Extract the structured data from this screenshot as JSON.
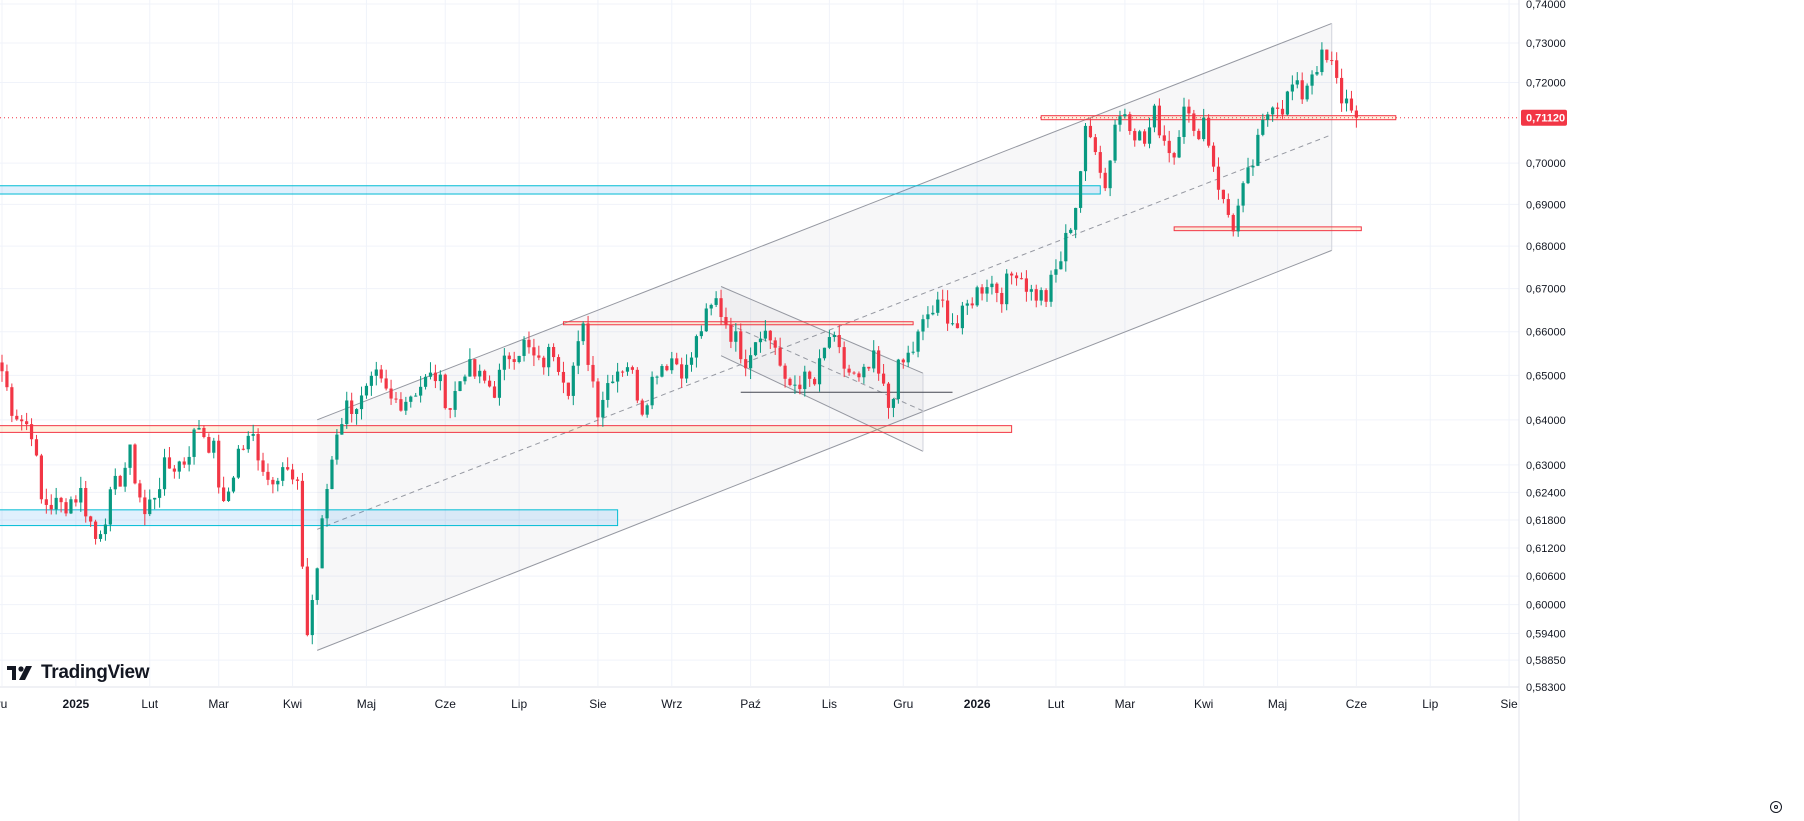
{
  "brand": {
    "name": "TradingView",
    "logo_icon": "tradingview-logo-icon"
  },
  "price_badge": {
    "value": "0,71120",
    "color": "#f23645",
    "price": 0.7112
  },
  "colors": {
    "up": "#089981",
    "down": "#f23645",
    "grid": "#f0f3fa",
    "channel": "#9598a1",
    "demand_zone": "#00bcd4",
    "supply_zone": "#f23645"
  },
  "settings_icon": "gear-icon",
  "chart_data": {
    "type": "candlestick",
    "title": "",
    "xlabel": "",
    "ylabel": "",
    "y_scale": "log",
    "ylim": [
      0.583,
      0.74
    ],
    "grid": true,
    "y_ticks": [
      {
        "value": 0.74,
        "label": "0,74000"
      },
      {
        "value": 0.73,
        "label": "0,73000"
      },
      {
        "value": 0.72,
        "label": "0,72000"
      },
      {
        "value": 0.7,
        "label": "0,70000"
      },
      {
        "value": 0.69,
        "label": "0,69000"
      },
      {
        "value": 0.68,
        "label": "0,68000"
      },
      {
        "value": 0.67,
        "label": "0,67000"
      },
      {
        "value": 0.66,
        "label": "0,66000"
      },
      {
        "value": 0.65,
        "label": "0,65000"
      },
      {
        "value": 0.64,
        "label": "0,64000"
      },
      {
        "value": 0.63,
        "label": "0,63000"
      },
      {
        "value": 0.624,
        "label": "0,62400"
      },
      {
        "value": 0.618,
        "label": "0,61800"
      },
      {
        "value": 0.612,
        "label": "0,61200"
      },
      {
        "value": 0.606,
        "label": "0,60600"
      },
      {
        "value": 0.6,
        "label": "0,60000"
      },
      {
        "value": 0.594,
        "label": "0,59400"
      },
      {
        "value": 0.5885,
        "label": "0,58850"
      },
      {
        "value": 0.583,
        "label": "0,58300"
      }
    ],
    "x_ticks": [
      {
        "label": "ru",
        "bar": 0,
        "year": false
      },
      {
        "label": "2025",
        "bar": 15,
        "year": true
      },
      {
        "label": "Lut",
        "bar": 30,
        "year": false
      },
      {
        "label": "Mar",
        "bar": 44,
        "year": false
      },
      {
        "label": "Kwi",
        "bar": 59,
        "year": false
      },
      {
        "label": "Maj",
        "bar": 74,
        "year": false
      },
      {
        "label": "Cze",
        "bar": 90,
        "year": false
      },
      {
        "label": "Lip",
        "bar": 105,
        "year": false
      },
      {
        "label": "Sie",
        "bar": 121,
        "year": false
      },
      {
        "label": "Wrz",
        "bar": 136,
        "year": false
      },
      {
        "label": "Paź",
        "bar": 152,
        "year": false
      },
      {
        "label": "Lis",
        "bar": 168,
        "year": false
      },
      {
        "label": "Gru",
        "bar": 183,
        "year": false
      },
      {
        "label": "2026",
        "bar": 198,
        "year": true
      },
      {
        "label": "Lut",
        "bar": 214,
        "year": false
      },
      {
        "label": "Mar",
        "bar": 228,
        "year": false
      },
      {
        "label": "Kwi",
        "bar": 244,
        "year": false
      },
      {
        "label": "Maj",
        "bar": 259,
        "year": false
      },
      {
        "label": "Cze",
        "bar": 275,
        "year": false
      },
      {
        "label": "Lip",
        "bar": 290,
        "year": false
      },
      {
        "label": "Sie",
        "bar": 306,
        "year": false
      }
    ],
    "anchors": [
      {
        "bar": 0,
        "close": 0.651
      },
      {
        "bar": 2,
        "close": 0.643
      },
      {
        "bar": 4,
        "close": 0.64
      },
      {
        "bar": 6,
        "close": 0.638
      },
      {
        "bar": 8,
        "close": 0.622
      },
      {
        "bar": 12,
        "close": 0.621
      },
      {
        "bar": 16,
        "close": 0.624
      },
      {
        "bar": 19,
        "close": 0.614
      },
      {
        "bar": 23,
        "close": 0.625
      },
      {
        "bar": 26,
        "close": 0.632
      },
      {
        "bar": 29,
        "close": 0.619
      },
      {
        "bar": 33,
        "close": 0.629
      },
      {
        "bar": 37,
        "close": 0.631
      },
      {
        "bar": 40,
        "close": 0.639
      },
      {
        "bar": 43,
        "close": 0.633
      },
      {
        "bar": 45,
        "close": 0.62
      },
      {
        "bar": 48,
        "close": 0.633
      },
      {
        "bar": 51,
        "close": 0.636
      },
      {
        "bar": 54,
        "close": 0.627
      },
      {
        "bar": 57,
        "close": 0.63
      },
      {
        "bar": 60,
        "close": 0.624
      },
      {
        "bar": 62,
        "close": 0.594
      },
      {
        "bar": 64,
        "close": 0.608
      },
      {
        "bar": 66,
        "close": 0.625
      },
      {
        "bar": 68,
        "close": 0.638
      },
      {
        "bar": 70,
        "close": 0.643
      },
      {
        "bar": 73,
        "close": 0.644
      },
      {
        "bar": 76,
        "close": 0.649
      },
      {
        "bar": 79,
        "close": 0.644
      },
      {
        "bar": 82,
        "close": 0.645
      },
      {
        "bar": 85,
        "close": 0.648
      },
      {
        "bar": 88,
        "close": 0.65
      },
      {
        "bar": 91,
        "close": 0.643
      },
      {
        "bar": 94,
        "close": 0.652
      },
      {
        "bar": 97,
        "close": 0.649
      },
      {
        "bar": 100,
        "close": 0.647
      },
      {
        "bar": 103,
        "close": 0.655
      },
      {
        "bar": 106,
        "close": 0.657
      },
      {
        "bar": 109,
        "close": 0.652
      },
      {
        "bar": 112,
        "close": 0.656
      },
      {
        "bar": 115,
        "close": 0.648
      },
      {
        "bar": 118,
        "close": 0.66
      },
      {
        "bar": 121,
        "close": 0.643
      },
      {
        "bar": 124,
        "close": 0.651
      },
      {
        "bar": 127,
        "close": 0.653
      },
      {
        "bar": 130,
        "close": 0.643
      },
      {
        "bar": 133,
        "close": 0.652
      },
      {
        "bar": 136,
        "close": 0.654
      },
      {
        "bar": 139,
        "close": 0.651
      },
      {
        "bar": 142,
        "close": 0.661
      },
      {
        "bar": 145,
        "close": 0.667
      },
      {
        "bar": 148,
        "close": 0.66
      },
      {
        "bar": 151,
        "close": 0.654
      },
      {
        "bar": 154,
        "close": 0.661
      },
      {
        "bar": 157,
        "close": 0.657
      },
      {
        "bar": 159,
        "close": 0.647
      },
      {
        "bar": 162,
        "close": 0.649
      },
      {
        "bar": 165,
        "close": 0.648
      },
      {
        "bar": 168,
        "close": 0.659
      },
      {
        "bar": 171,
        "close": 0.652
      },
      {
        "bar": 174,
        "close": 0.648
      },
      {
        "bar": 177,
        "close": 0.653
      },
      {
        "bar": 180,
        "close": 0.643
      },
      {
        "bar": 182,
        "close": 0.651
      },
      {
        "bar": 185,
        "close": 0.656
      },
      {
        "bar": 188,
        "close": 0.664
      },
      {
        "bar": 191,
        "close": 0.666
      },
      {
        "bar": 194,
        "close": 0.661
      },
      {
        "bar": 197,
        "close": 0.668
      },
      {
        "bar": 200,
        "close": 0.672
      },
      {
        "bar": 203,
        "close": 0.669
      },
      {
        "bar": 206,
        "close": 0.675
      },
      {
        "bar": 209,
        "close": 0.669
      },
      {
        "bar": 212,
        "close": 0.668
      },
      {
        "bar": 215,
        "close": 0.677
      },
      {
        "bar": 218,
        "close": 0.69
      },
      {
        "bar": 220,
        "close": 0.707
      },
      {
        "bar": 222,
        "close": 0.705
      },
      {
        "bar": 224,
        "close": 0.694
      },
      {
        "bar": 226,
        "close": 0.71
      },
      {
        "bar": 228,
        "close": 0.713
      },
      {
        "bar": 230,
        "close": 0.708
      },
      {
        "bar": 232,
        "close": 0.705
      },
      {
        "bar": 234,
        "close": 0.712
      },
      {
        "bar": 236,
        "close": 0.706
      },
      {
        "bar": 238,
        "close": 0.702
      },
      {
        "bar": 240,
        "close": 0.716
      },
      {
        "bar": 242,
        "close": 0.706
      },
      {
        "bar": 244,
        "close": 0.711
      },
      {
        "bar": 246,
        "close": 0.7
      },
      {
        "bar": 248,
        "close": 0.69
      },
      {
        "bar": 250,
        "close": 0.685
      },
      {
        "bar": 252,
        "close": 0.693
      },
      {
        "bar": 254,
        "close": 0.7
      },
      {
        "bar": 256,
        "close": 0.709
      },
      {
        "bar": 258,
        "close": 0.716
      },
      {
        "bar": 260,
        "close": 0.714
      },
      {
        "bar": 262,
        "close": 0.719
      },
      {
        "bar": 264,
        "close": 0.717
      },
      {
        "bar": 266,
        "close": 0.723
      },
      {
        "bar": 268,
        "close": 0.726
      },
      {
        "bar": 270,
        "close": 0.724
      },
      {
        "bar": 272,
        "close": 0.716
      },
      {
        "bar": 274,
        "close": 0.715
      },
      {
        "bar": 275,
        "close": 0.7112
      }
    ],
    "channels": [
      {
        "name": "main",
        "upper": [
          [
            64,
            0.64
          ],
          [
            270,
            0.735
          ]
        ],
        "lower": [
          [
            64,
            0.5905
          ],
          [
            270,
            0.679
          ]
        ],
        "mid": [
          [
            64,
            0.616
          ],
          [
            270,
            0.707
          ]
        ]
      },
      {
        "name": "flag",
        "upper": [
          [
            146,
            0.6705
          ],
          [
            187,
            0.6505
          ]
        ],
        "lower": [
          [
            146,
            0.6545
          ],
          [
            187,
            0.633
          ]
        ],
        "mid": [
          [
            146,
            0.6625
          ],
          [
            187,
            0.642
          ]
        ]
      }
    ],
    "zones": [
      {
        "kind": "demand",
        "from_bar": -2,
        "to_bar": 223,
        "low": 0.6925,
        "high": 0.6945
      },
      {
        "kind": "demand",
        "from_bar": -2,
        "to_bar": 125,
        "low": 0.6168,
        "high": 0.6202
      },
      {
        "kind": "supply",
        "from_bar": -2,
        "to_bar": 205,
        "low": 0.6372,
        "high": 0.6387
      },
      {
        "kind": "supply",
        "from_bar": 211,
        "to_bar": 283,
        "low": 0.7107,
        "high": 0.7117
      },
      {
        "kind": "supply",
        "from_bar": 114,
        "to_bar": 185,
        "low": 0.6616,
        "high": 0.6623
      },
      {
        "kind": "supply",
        "from_bar": 238,
        "to_bar": 276,
        "low": 0.6837,
        "high": 0.6846
      }
    ],
    "hlines": [
      {
        "from_bar": 150,
        "to_bar": 193,
        "value": 0.6462
      }
    ]
  }
}
